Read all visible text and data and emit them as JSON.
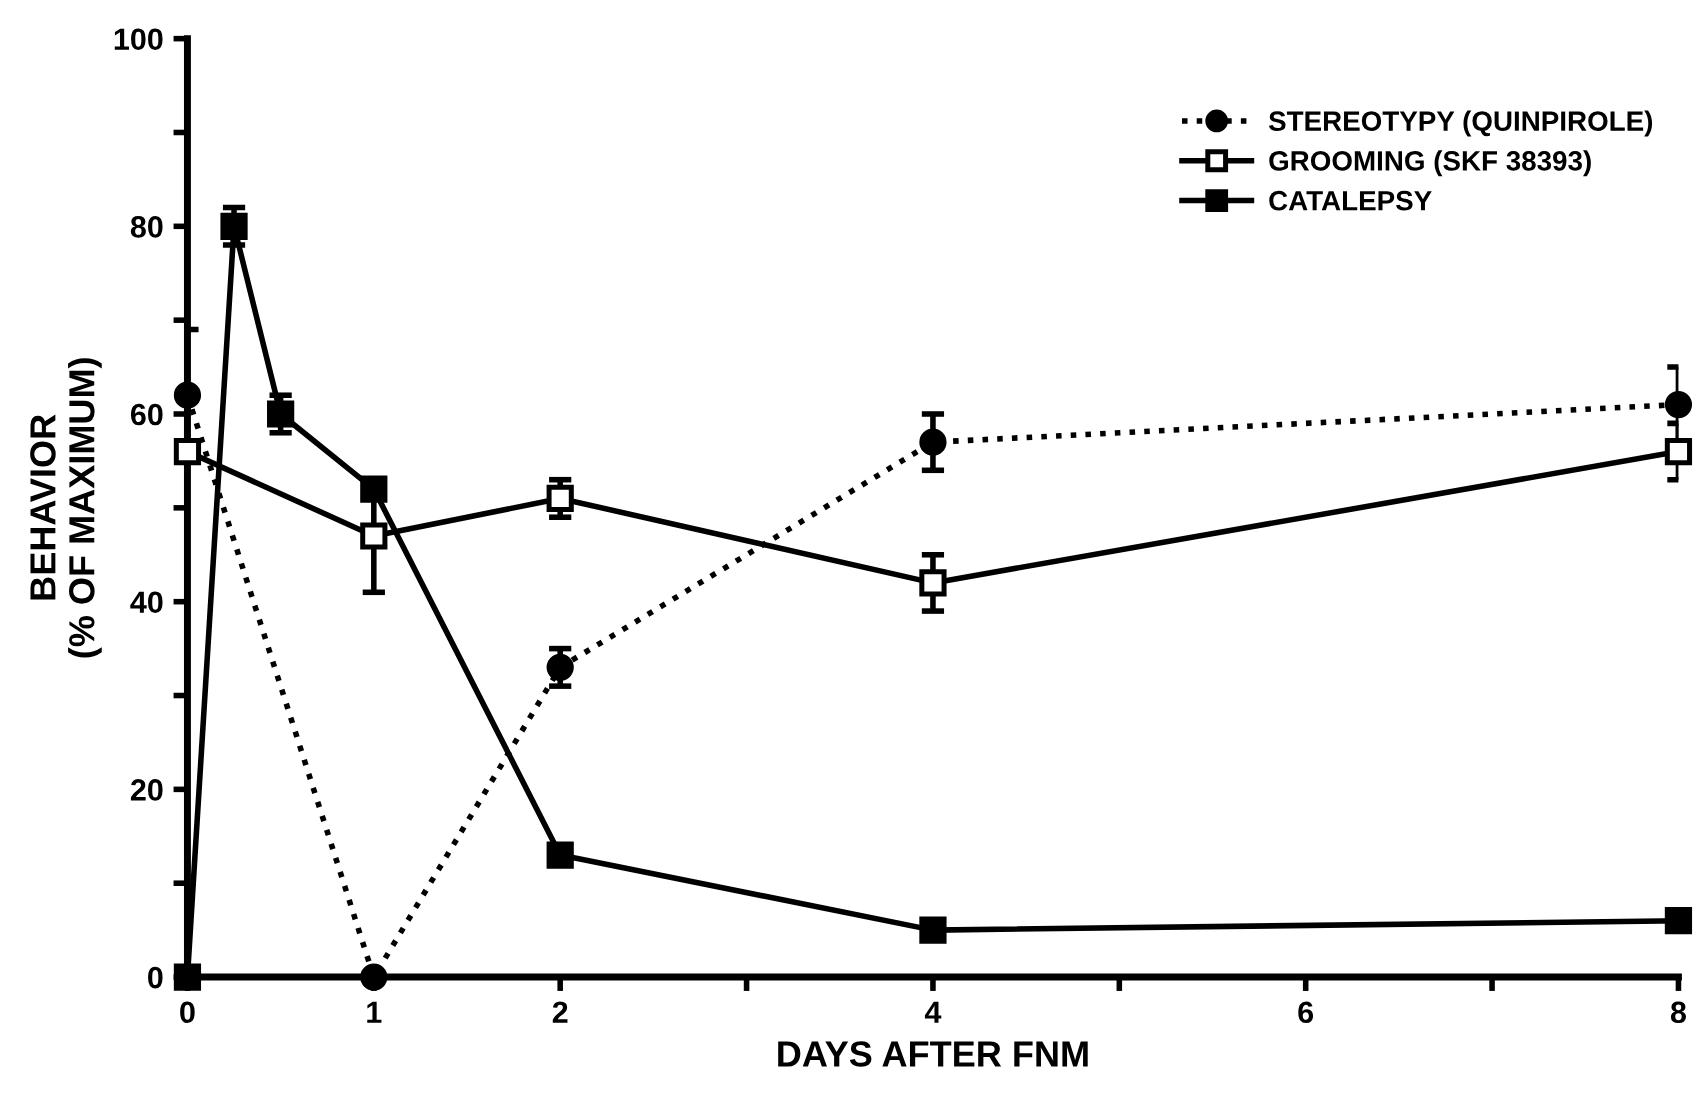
{
  "chart_data": {
    "type": "line",
    "xlabel": "DAYS AFTER FNM",
    "ylabel": "BEHAVIOR\n(% OF MAXIMUM)",
    "xlim": [
      0,
      8
    ],
    "ylim": [
      0,
      100
    ],
    "xticks": [
      0,
      1,
      2,
      {
        "value": 3,
        "label": null
      },
      4,
      {
        "value": 5,
        "label": null
      },
      6,
      {
        "value": 7,
        "label": null
      },
      8
    ],
    "yticks": [
      0,
      {
        "value": 10,
        "label": null
      },
      20,
      {
        "value": 30,
        "label": null
      },
      40,
      {
        "value": 50,
        "label": null
      },
      60,
      {
        "value": 70,
        "label": null
      },
      80,
      {
        "value": 90,
        "label": null
      },
      100
    ],
    "grid": false,
    "legend": "top right",
    "series": [
      {
        "name": "STEREOTYPY (QUINPIROLE)",
        "color": "#000000",
        "marker": "circle",
        "line_style": "dotted",
        "x": [
          0,
          1,
          2,
          4,
          8
        ],
        "values": [
          62,
          0,
          33,
          57,
          61
        ],
        "errors": [
          7,
          null,
          2,
          3,
          4
        ]
      },
      {
        "name": "GROOMING (SKF 38393)",
        "color": "#000000",
        "marker": "square",
        "line_style": "solid",
        "colors": [
          "#ffffff",
          "#ffffff",
          "#ffffff",
          "#ffffff",
          "#ffffff"
        ],
        "x": [
          0,
          1,
          2,
          4,
          8
        ],
        "values": [
          56,
          47,
          51,
          42,
          56
        ],
        "errors": [
          null,
          6,
          2,
          3,
          3
        ]
      },
      {
        "name": "CATALEPSY",
        "color": "#000000",
        "marker": "square",
        "line_style": "solid",
        "x": [
          0,
          0.25,
          0.5,
          1,
          2,
          4,
          8
        ],
        "values": [
          0,
          80,
          60,
          52,
          13,
          5,
          6
        ],
        "errors": [
          null,
          2,
          2,
          null,
          null,
          null,
          null
        ]
      }
    ]
  }
}
